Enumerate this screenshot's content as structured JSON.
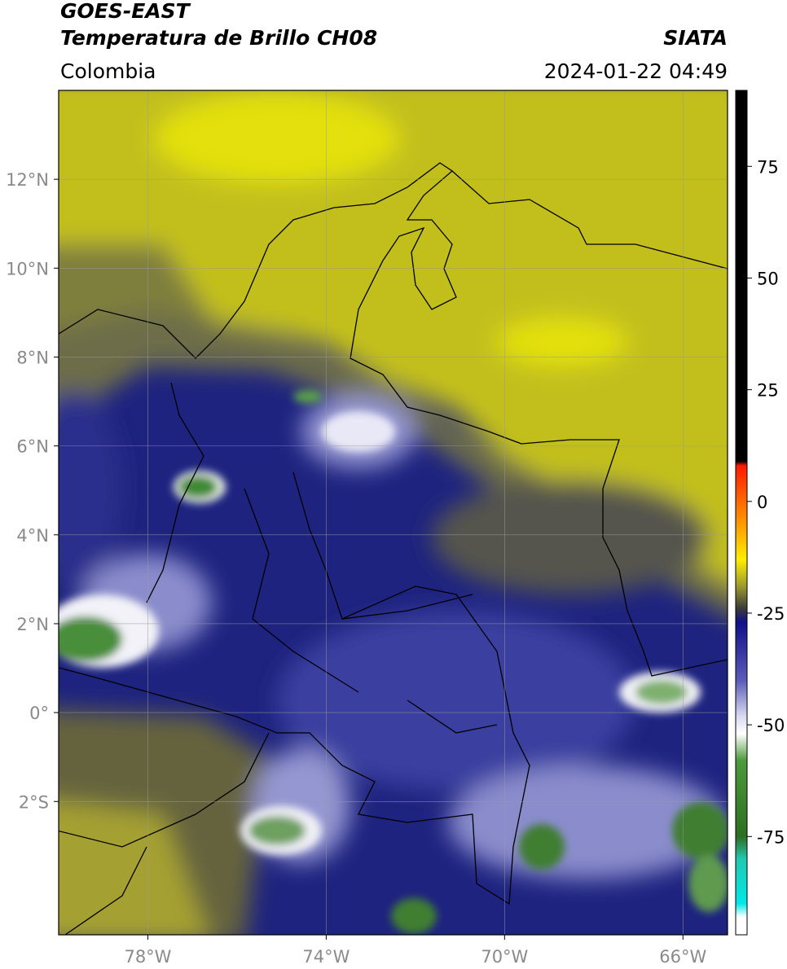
{
  "header": {
    "title": "GOES-EAST",
    "subtitle": "Temperatura de Brillo CH08",
    "region": "Colombia",
    "source": "SIATA",
    "datetime": "2024-01-22 04:49"
  },
  "map": {
    "lonlim": [
      -80,
      -65
    ],
    "latlim": [
      -5,
      14
    ],
    "grid": true,
    "lon_ticks": [
      {
        "value": -78,
        "label": "78°W"
      },
      {
        "value": -74,
        "label": "74°W"
      },
      {
        "value": -70,
        "label": "70°W"
      },
      {
        "value": -66,
        "label": "66°W"
      }
    ],
    "lat_ticks": [
      {
        "value": 12,
        "label": "12°N"
      },
      {
        "value": 10,
        "label": "10°N"
      },
      {
        "value": 8,
        "label": "8°N"
      },
      {
        "value": 6,
        "label": "6°N"
      },
      {
        "value": 4,
        "label": "4°N"
      },
      {
        "value": 2,
        "label": "2°N"
      },
      {
        "value": 0,
        "label": "0°"
      },
      {
        "value": -2,
        "label": "2°S"
      }
    ]
  },
  "colorbar": {
    "lim": [
      -97,
      92
    ],
    "ticks": [
      75,
      50,
      25,
      0,
      -25,
      -50,
      -75
    ],
    "colormap": [
      {
        "value": 92,
        "color": "#000000"
      },
      {
        "value": 9,
        "color": "#000000"
      },
      {
        "value": 8,
        "color": "#ff1a00"
      },
      {
        "value": -5,
        "color": "#ff9900"
      },
      {
        "value": -13,
        "color": "#ffee00"
      },
      {
        "value": -19,
        "color": "#9a9a30"
      },
      {
        "value": -24,
        "color": "#3a3a3a"
      },
      {
        "value": -27,
        "color": "#10108a"
      },
      {
        "value": -40,
        "color": "#5a5ab8"
      },
      {
        "value": -48,
        "color": "#d8d8f0"
      },
      {
        "value": -52,
        "color": "#ffffff"
      },
      {
        "value": -58,
        "color": "#4c9a3c"
      },
      {
        "value": -75,
        "color": "#2e6e22"
      },
      {
        "value": -80,
        "color": "#22c8b0"
      },
      {
        "value": -90,
        "color": "#00e8e8"
      },
      {
        "value": -93,
        "color": "#ffffff"
      },
      {
        "value": -97,
        "color": "#ffffff"
      }
    ]
  }
}
